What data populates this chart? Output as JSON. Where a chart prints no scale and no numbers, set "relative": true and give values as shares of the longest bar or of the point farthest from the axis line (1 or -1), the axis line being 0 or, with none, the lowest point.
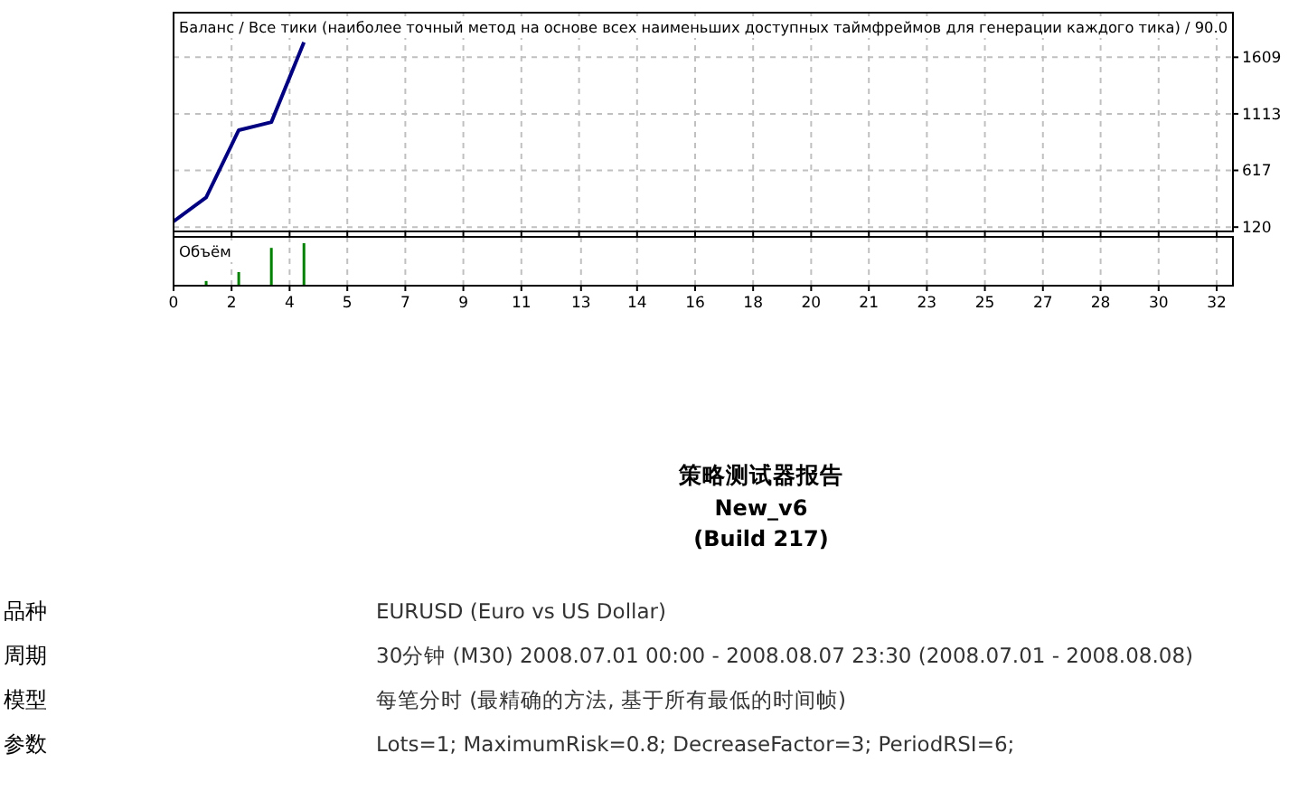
{
  "chart_data": [
    {
      "type": "line",
      "title": "Баланс / Все тики (наиболее точный метод на основе всех наименьших доступных таймфреймов для генерации каждого тика) / 90.0",
      "x": [
        0,
        1,
        2,
        3,
        4
      ],
      "series": [
        {
          "color": "#000080",
          "values": [
            170,
            380,
            970,
            1040,
            1740
          ]
        }
      ],
      "xlim": [
        0,
        32.5
      ],
      "ylim": [
        82,
        2000
      ],
      "yticks": [
        120,
        617,
        1113,
        1609
      ],
      "xticks": [
        {
          "value": 0,
          "label": null
        },
        {
          "value": 1.78,
          "label": null
        },
        {
          "value": 3.56,
          "label": null
        },
        {
          "value": 5.33,
          "label": null
        },
        {
          "value": 7.11,
          "label": null
        },
        {
          "value": 8.89,
          "label": null
        },
        {
          "value": 10.67,
          "label": null
        },
        {
          "value": 12.44,
          "label": null
        },
        {
          "value": 14.22,
          "label": null
        },
        {
          "value": 16,
          "label": null
        },
        {
          "value": 17.78,
          "label": null
        },
        {
          "value": 19.56,
          "label": null
        },
        {
          "value": 21.33,
          "label": null
        },
        {
          "value": 23.11,
          "label": null
        },
        {
          "value": 24.89,
          "label": null
        },
        {
          "value": 26.67,
          "label": null
        },
        {
          "value": 28.44,
          "label": null
        },
        {
          "value": 30.22,
          "label": null
        },
        {
          "value": 32,
          "label": null
        }
      ],
      "tick_labels": "y",
      "grid": true
    },
    {
      "type": "bar",
      "title": "Объём",
      "relative": true,
      "x": [
        1,
        2,
        3,
        4
      ],
      "series": [
        {
          "color": "#008000",
          "values": [
            0.11,
            0.32,
            0.89,
            1
          ]
        }
      ],
      "xlim": [
        0,
        32.5
      ],
      "xticks": [
        {
          "value": 0,
          "label": "0"
        },
        {
          "value": 1.78,
          "label": "2"
        },
        {
          "value": 3.56,
          "label": "4"
        },
        {
          "value": 5.33,
          "label": "5"
        },
        {
          "value": 7.11,
          "label": "7"
        },
        {
          "value": 8.89,
          "label": "9"
        },
        {
          "value": 10.67,
          "label": "11"
        },
        {
          "value": 12.5,
          "label": "13"
        },
        {
          "value": 14.22,
          "label": "14"
        },
        {
          "value": 16,
          "label": "16"
        },
        {
          "value": 17.78,
          "label": "18"
        },
        {
          "value": 19.56,
          "label": "20"
        },
        {
          "value": 21.33,
          "label": "21"
        },
        {
          "value": 23.11,
          "label": "23"
        },
        {
          "value": 24.89,
          "label": "25"
        },
        {
          "value": 26.67,
          "label": "27"
        },
        {
          "value": 28.44,
          "label": "28"
        },
        {
          "value": 30.22,
          "label": "30"
        },
        {
          "value": 32,
          "label": "32"
        }
      ],
      "tick_labels": "x",
      "grid": "x"
    },
    {
      "type": "other",
      "title": "策略测试器报告",
      "subtitle": "New_v6",
      "annotations": [
        "(Build 217)",
        "品种",
        "EURUSD (Euro vs US Dollar)",
        "周期",
        "30分钟 (M30) 2008.07.01 00:00 - 2008.08.07 23:30 (2008.07.01 - 2008.08.08)",
        "模型",
        "每笔分时 (最精确的方法, 基于所有最低的时间帧)",
        "参数",
        "Lots=1; MaximumRisk=0.8; DecreaseFactor=3; PeriodRSI=6;"
      ]
    }
  ]
}
